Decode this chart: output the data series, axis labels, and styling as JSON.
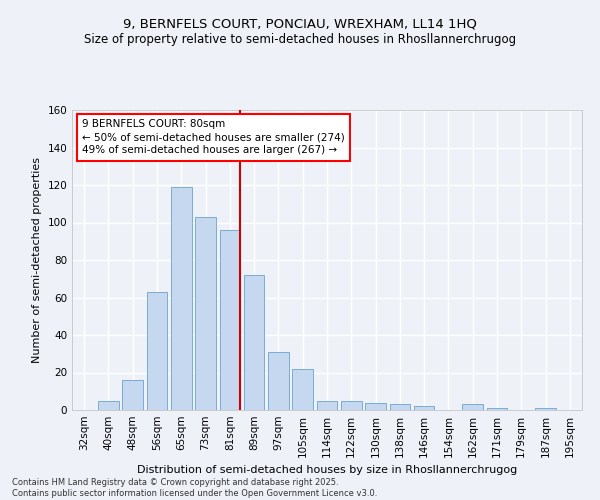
{
  "title1": "9, BERNFELS COURT, PONCIAU, WREXHAM, LL14 1HQ",
  "title2": "Size of property relative to semi-detached houses in Rhosllannerchrugog",
  "xlabel": "Distribution of semi-detached houses by size in Rhosllannerchrugog",
  "ylabel": "Number of semi-detached properties",
  "footer": "Contains HM Land Registry data © Crown copyright and database right 2025.\nContains public sector information licensed under the Open Government Licence v3.0.",
  "categories": [
    "32sqm",
    "40sqm",
    "48sqm",
    "56sqm",
    "65sqm",
    "73sqm",
    "81sqm",
    "89sqm",
    "97sqm",
    "105sqm",
    "114sqm",
    "122sqm",
    "130sqm",
    "138sqm",
    "146sqm",
    "154sqm",
    "162sqm",
    "171sqm",
    "179sqm",
    "187sqm",
    "195sqm"
  ],
  "values": [
    0,
    5,
    16,
    63,
    119,
    103,
    96,
    72,
    31,
    22,
    5,
    5,
    4,
    3,
    2,
    0,
    3,
    1,
    0,
    1,
    0
  ],
  "bar_color": "#c5d8ef",
  "bar_edge_color": "#7aadd4",
  "vline_index": 6,
  "vline_color": "#cc0000",
  "annotation_text": "9 BERNFELS COURT: 80sqm\n← 50% of semi-detached houses are smaller (274)\n49% of semi-detached houses are larger (267) →",
  "ylim": [
    0,
    160
  ],
  "yticks": [
    0,
    20,
    40,
    60,
    80,
    100,
    120,
    140,
    160
  ],
  "background_color": "#eef2f8",
  "grid_color": "#ffffff",
  "title_fontsize": 9.5,
  "subtitle_fontsize": 8.5,
  "axis_label_fontsize": 8,
  "tick_fontsize": 7.5,
  "annotation_fontsize": 7.5,
  "footer_fontsize": 6
}
